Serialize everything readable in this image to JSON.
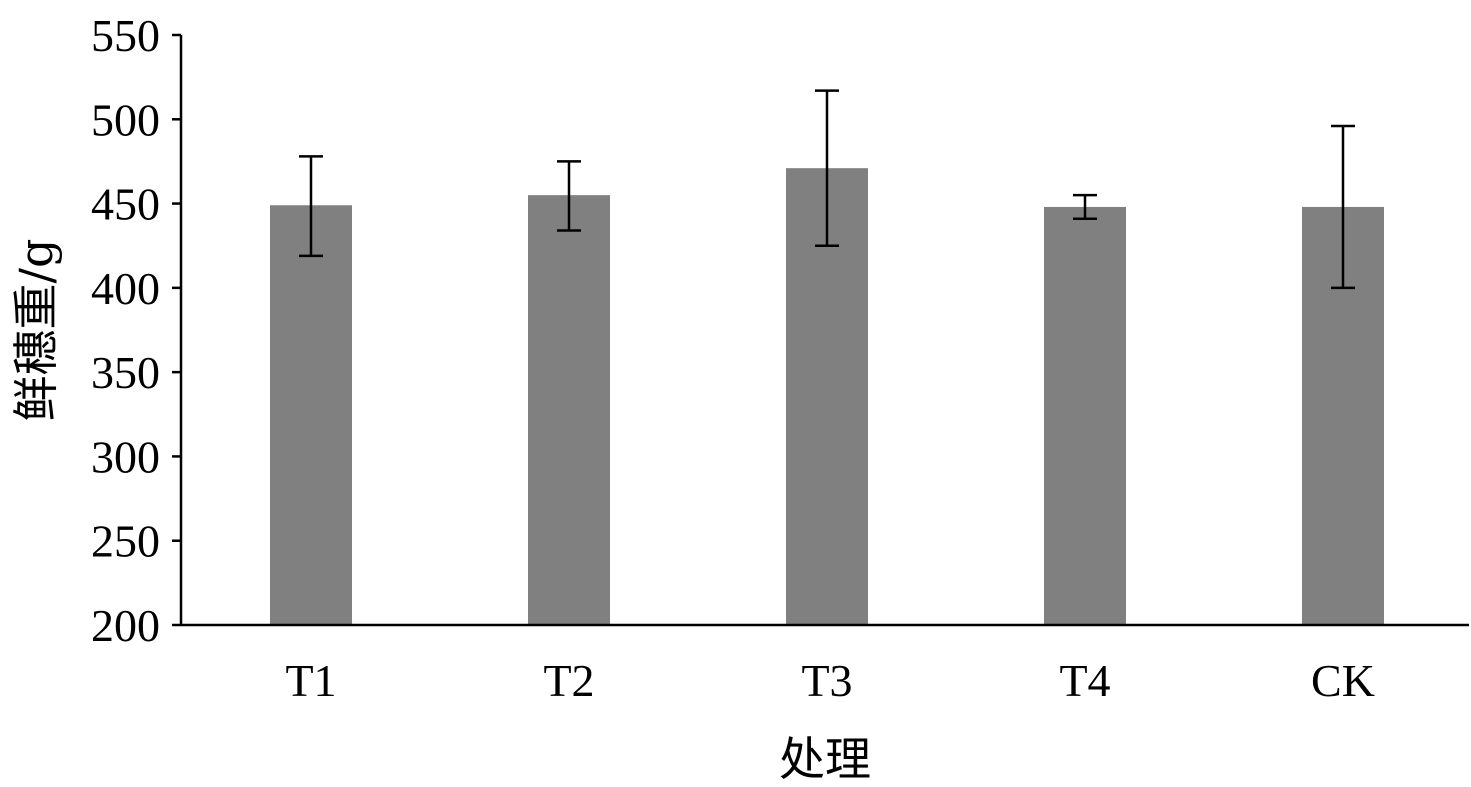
{
  "chart_data": {
    "type": "bar",
    "title": "",
    "xlabel": "处理",
    "ylabel": "鲜穗重/g",
    "categories": [
      "T1",
      "T2",
      "T3",
      "T4",
      "CK"
    ],
    "values": [
      449,
      455,
      471,
      448,
      448
    ],
    "error_low": [
      419,
      434,
      425,
      441,
      400
    ],
    "error_high": [
      478,
      475,
      517,
      455,
      496
    ],
    "ylim": [
      200,
      550
    ],
    "yticks": [
      200,
      250,
      300,
      350,
      400,
      450,
      500,
      550
    ],
    "ytick_labels": [
      "200",
      "250",
      "300",
      "350",
      "400",
      "450",
      "500",
      "550"
    ],
    "grid": false,
    "legend": "none",
    "colors": {
      "bar": "#808080",
      "error_bar": "#000000",
      "axis": "#000000"
    }
  }
}
